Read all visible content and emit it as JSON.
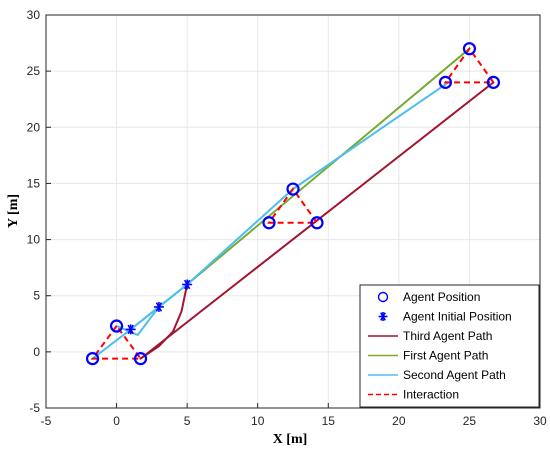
{
  "chart_data": {
    "type": "line",
    "title": "",
    "xlabel": "X [m]",
    "ylabel": "Y [m]",
    "xlim": [
      -5,
      30
    ],
    "ylim": [
      -5,
      30
    ],
    "xticks": [
      -5,
      0,
      5,
      10,
      15,
      20,
      25,
      30
    ],
    "yticks": [
      -5,
      0,
      5,
      10,
      15,
      20,
      25,
      30
    ],
    "grid": true,
    "legend_position": "bottom-right",
    "legend": [
      {
        "key": "agent_position",
        "label": "Agent Position",
        "marker": "circle",
        "color": "#0000ff"
      },
      {
        "key": "agent_initial",
        "label": "Agent Initial Position",
        "marker": "asterisk",
        "color": "#0000ff"
      },
      {
        "key": "third",
        "label": "Third Agent Path",
        "color": "#a2142f"
      },
      {
        "key": "first",
        "label": "First Agent Path",
        "color": "#77ac30"
      },
      {
        "key": "second",
        "label": "Second Agent Path",
        "color": "#4dbeee"
      },
      {
        "key": "interaction",
        "label": "Interaction",
        "color": "#ff0000",
        "dashed": true
      }
    ],
    "series": [
      {
        "key": "first",
        "color": "#77ac30",
        "points": [
          [
            1,
            2
          ],
          [
            5,
            6
          ],
          [
            25,
            27
          ]
        ]
      },
      {
        "key": "second",
        "color": "#4dbeee",
        "points": [
          [
            -1.7,
            -0.6
          ],
          [
            1,
            2
          ],
          [
            5,
            6
          ],
          [
            12.5,
            14.5
          ],
          [
            23.5,
            24
          ]
        ]
      },
      {
        "key": "second",
        "color": "#4dbeee",
        "points": [
          [
            0,
            2.3
          ],
          [
            1.5,
            1.5
          ],
          [
            3,
            4
          ],
          [
            5,
            6
          ]
        ]
      },
      {
        "key": "third",
        "color": "#a2142f",
        "points": [
          [
            1.7,
            -0.6
          ],
          [
            3,
            0.5
          ],
          [
            4,
            1.8
          ],
          [
            4.6,
            3.6
          ],
          [
            5,
            6
          ]
        ]
      },
      {
        "key": "third",
        "color": "#a2142f",
        "points": [
          [
            1.7,
            -0.6
          ],
          [
            26.7,
            24
          ]
        ]
      }
    ],
    "interaction_triangles": [
      [
        [
          0,
          2.3
        ],
        [
          -1.7,
          -0.6
        ],
        [
          1.7,
          -0.6
        ]
      ],
      [
        [
          12.5,
          14.5
        ],
        [
          10.8,
          11.5
        ],
        [
          14.2,
          11.5
        ]
      ],
      [
        [
          25,
          27
        ],
        [
          23.3,
          24
        ],
        [
          26.7,
          24
        ]
      ]
    ],
    "agent_positions": [
      [
        0,
        2.3
      ],
      [
        -1.7,
        -0.6
      ],
      [
        1.7,
        -0.6
      ],
      [
        12.5,
        14.5
      ],
      [
        10.8,
        11.5
      ],
      [
        14.2,
        11.5
      ],
      [
        25,
        27
      ],
      [
        23.3,
        24
      ],
      [
        26.7,
        24
      ]
    ],
    "agent_initial_positions": [
      [
        1,
        2
      ],
      [
        3,
        4
      ],
      [
        5,
        6
      ]
    ]
  }
}
